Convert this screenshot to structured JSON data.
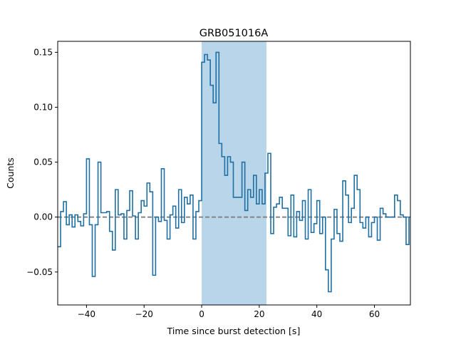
{
  "chart_data": {
    "type": "line",
    "title": "GRB051016A",
    "xlabel": "Time since burst detection [s]",
    "ylabel": "Counts",
    "xlim": [
      -50,
      72.5
    ],
    "ylim": [
      -0.08,
      0.16
    ],
    "xticks": [
      -40,
      -20,
      0,
      20,
      40,
      60
    ],
    "xtick_labels": [
      "−40",
      "−20",
      "0",
      "20",
      "40",
      "60"
    ],
    "yticks": [
      -0.05,
      0.0,
      0.05,
      0.1,
      0.15
    ],
    "ytick_labels": [
      "−0.05",
      "0.00",
      "0.05",
      "0.10",
      "0.15"
    ],
    "grid": false,
    "step_series": {
      "bin_width": 1.0,
      "x_start": -50,
      "values": [
        -0.027,
        0.005,
        0.014,
        -0.007,
        0.002,
        -0.009,
        0.002,
        -0.004,
        -0.008,
        0.003,
        0.053,
        -0.007,
        -0.054,
        -0.007,
        0.05,
        0.004,
        0.004,
        0.005,
        -0.013,
        -0.03,
        0.025,
        0.002,
        0.003,
        -0.02,
        0.006,
        0.024,
        0.001,
        -0.02,
        0.004,
        0.015,
        0.01,
        0.031,
        0.023,
        -0.053,
        0.0,
        -0.004,
        0.044,
        -0.003,
        -0.02,
        0.002,
        0.01,
        -0.01,
        0.025,
        -0.005,
        0.018,
        0.012,
        0.02,
        -0.02,
        0.005,
        0.015,
        0.141,
        0.148,
        0.143,
        0.12,
        0.104,
        0.15,
        0.067,
        0.055,
        0.038,
        0.055,
        0.05,
        0.018,
        0.018,
        0.018,
        0.05,
        0.006,
        0.025,
        0.018,
        0.038,
        0.012,
        0.025,
        0.012,
        0.04,
        0.058,
        -0.015,
        0.009,
        0.012,
        0.018,
        0.008,
        0.008,
        -0.017,
        0.02,
        -0.018,
        0.005,
        -0.003,
        0.015,
        -0.02,
        0.025,
        -0.014,
        -0.006,
        0.015,
        -0.015,
        0.0,
        -0.048,
        -0.068,
        -0.02,
        0.007,
        -0.015,
        -0.022,
        0.033,
        0.02,
        -0.005,
        0.008,
        0.038,
        0.025,
        -0.005,
        -0.01,
        0.0,
        -0.018,
        -0.005,
        0.0,
        -0.021,
        0.008,
        0.003,
        0.0,
        0.0,
        0.0,
        0.02,
        0.015,
        0.002,
        0.0,
        -0.025,
        0.0,
        0.014,
        -0.005,
        0.008,
        0.005
      ]
    },
    "shaded_region": {
      "x_range": [
        0,
        22.5
      ],
      "color": "#b9d5ea"
    },
    "reference_line": {
      "y": 0.0,
      "style": "dashed",
      "color": "#808080"
    },
    "series_color": "#1f6fa3"
  }
}
